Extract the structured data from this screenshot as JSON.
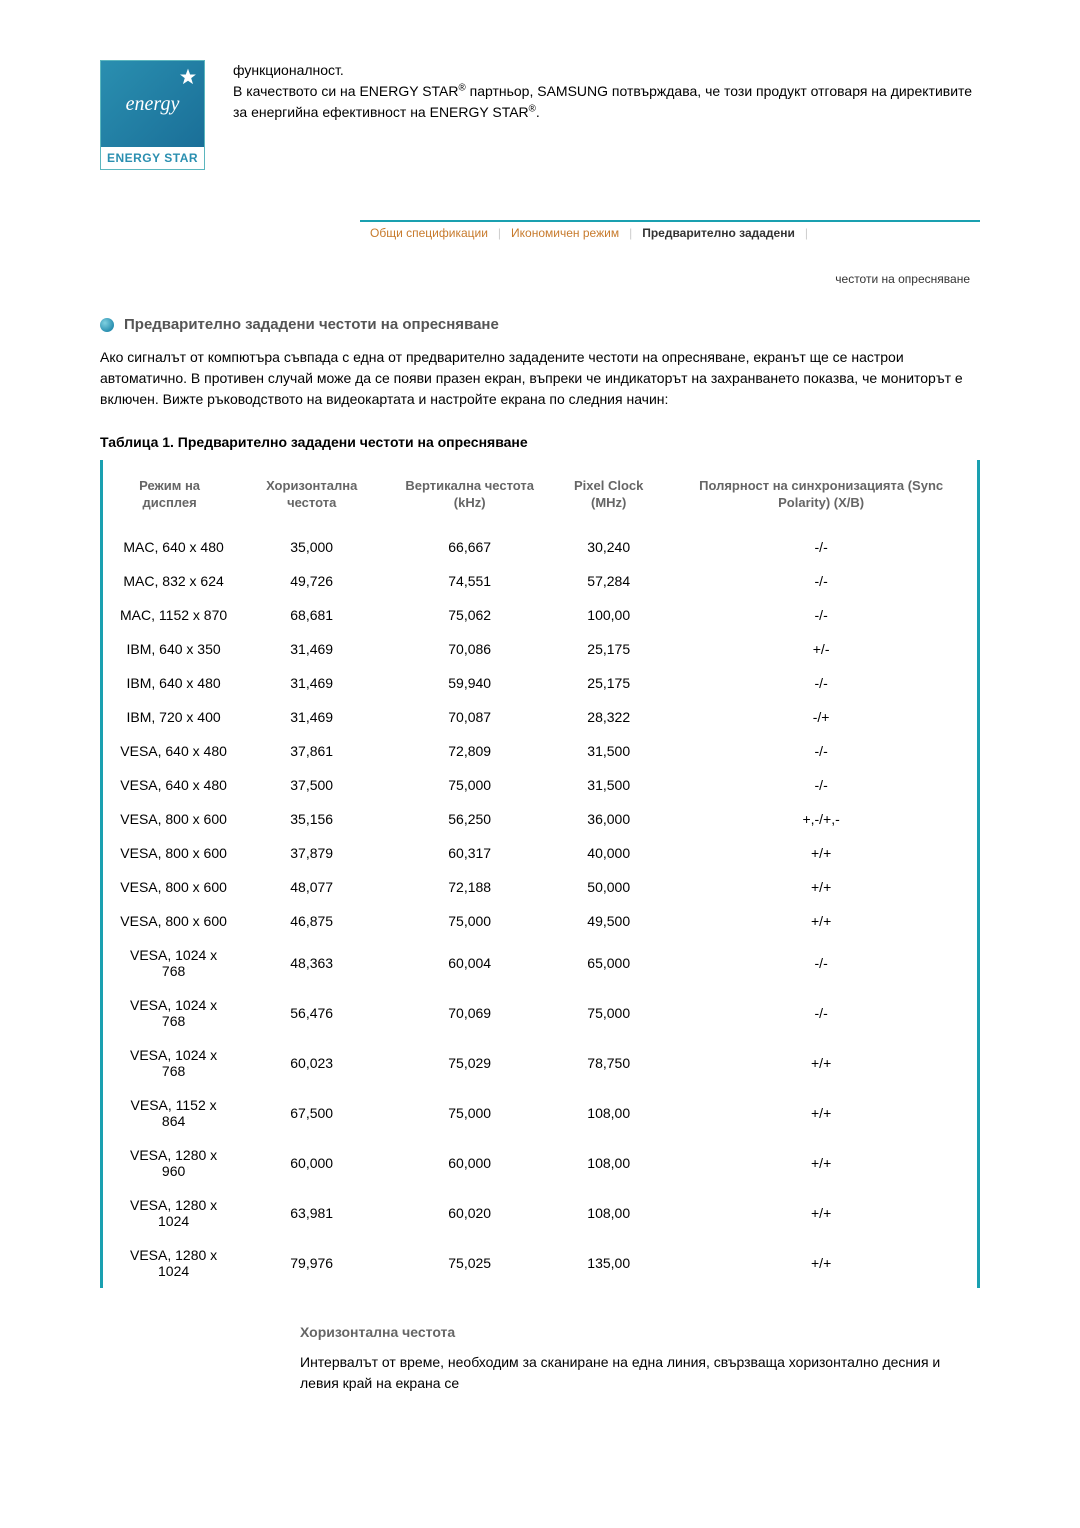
{
  "logo": {
    "script_text": "energy",
    "bar_text": "ENERGY STAR"
  },
  "header": {
    "line1": "функционалност.",
    "line2_a": "В качеството си на ENERGY STAR",
    "line2_b": " партньор, SAMSUNG потвърждава, че този продукт отговаря на директивите за енергийна ефективност на ENERGY STAR",
    "line2_c": "."
  },
  "tabs": {
    "t1": "Общи спецификации",
    "t2": "Икономичен режим",
    "t3": "Предварително зададени",
    "sub": "честоти на опресняване"
  },
  "section_title": "Предварително зададени честоти на опресняване",
  "intro": "Ако сигналът от компютъра съвпада с една от предварително зададените честоти на опресняване, екранът ще се настрои автоматично. В противен случай може да се появи празен екран, въпреки че индикаторът на захранването показва, че мониторът е включен. Вижте ръководството на видеокартата и настройте екрана по следния начин:",
  "table_title": "Таблица 1. Предварително зададени честоти на опресняване",
  "columns": {
    "c1": "Режим на дисплея",
    "c2": "Хоризонтална честота",
    "c3": "Вертикална честота (kHz)",
    "c4": "Pixel Clock (MHz)",
    "c5": "Полярност на синхронизацията (Sync Polarity) (X/B)"
  },
  "rows": [
    {
      "mode": "MAC, 640 x 480",
      "h": "35,000",
      "v": "66,667",
      "p": "30,240",
      "s": "-/-"
    },
    {
      "mode": "MAC, 832 x 624",
      "h": "49,726",
      "v": "74,551",
      "p": "57,284",
      "s": "-/-"
    },
    {
      "mode": "MAC, 1152 x 870",
      "h": "68,681",
      "v": "75,062",
      "p": "100,00",
      "s": "-/-"
    },
    {
      "mode": "IBM, 640 x 350",
      "h": "31,469",
      "v": "70,086",
      "p": "25,175",
      "s": "+/-"
    },
    {
      "mode": "IBM, 640 x 480",
      "h": "31,469",
      "v": "59,940",
      "p": "25,175",
      "s": "-/-"
    },
    {
      "mode": "IBM, 720 x 400",
      "h": "31,469",
      "v": "70,087",
      "p": "28,322",
      "s": "-/+"
    },
    {
      "mode": "VESA, 640 x 480",
      "h": "37,861",
      "v": "72,809",
      "p": "31,500",
      "s": "-/-"
    },
    {
      "mode": "VESA, 640 x 480",
      "h": "37,500",
      "v": "75,000",
      "p": "31,500",
      "s": "-/-"
    },
    {
      "mode": "VESA, 800 x 600",
      "h": "35,156",
      "v": "56,250",
      "p": "36,000",
      "s": "+,-/+,-"
    },
    {
      "mode": "VESA, 800 x 600",
      "h": "37,879",
      "v": "60,317",
      "p": "40,000",
      "s": "+/+"
    },
    {
      "mode": "VESA, 800 x 600",
      "h": "48,077",
      "v": "72,188",
      "p": "50,000",
      "s": "+/+"
    },
    {
      "mode": "VESA, 800 x 600",
      "h": "46,875",
      "v": "75,000",
      "p": "49,500",
      "s": "+/+"
    },
    {
      "mode": "VESA, 1024 x 768",
      "h": "48,363",
      "v": "60,004",
      "p": "65,000",
      "s": "-/-"
    },
    {
      "mode": "VESA, 1024 x 768",
      "h": "56,476",
      "v": "70,069",
      "p": "75,000",
      "s": "-/-"
    },
    {
      "mode": "VESA, 1024 x 768",
      "h": "60,023",
      "v": "75,029",
      "p": "78,750",
      "s": "+/+"
    },
    {
      "mode": "VESA, 1152 x 864",
      "h": "67,500",
      "v": "75,000",
      "p": "108,00",
      "s": "+/+"
    },
    {
      "mode": "VESA, 1280 x 960",
      "h": "60,000",
      "v": "60,000",
      "p": "108,00",
      "s": "+/+"
    },
    {
      "mode": "VESA, 1280 x 1024",
      "h": "63,981",
      "v": "60,020",
      "p": "108,00",
      "s": "+/+"
    },
    {
      "mode": "VESA, 1280 x 1024",
      "h": "79,976",
      "v": "75,025",
      "p": "135,00",
      "s": "+/+"
    }
  ],
  "footer": {
    "title": "Хоризонтална честота",
    "body": "Интервалът от време, необходим за сканиране на една линия, свързваща хоризонтално десния и левия край на екрана се"
  },
  "colors": {
    "accent": "#1aa0b0",
    "tab_inactive": "#c77a2c",
    "header_text": "#666666"
  }
}
